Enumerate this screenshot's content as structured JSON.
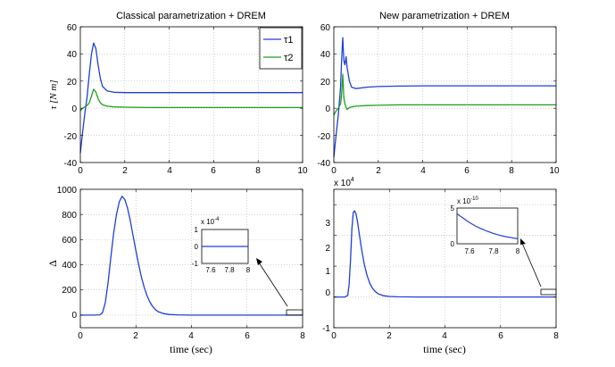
{
  "colors": {
    "tau1": "#1f3fd8",
    "tau2": "#1ea01e",
    "grid": "#b4b4b4",
    "axis": "#000000",
    "background": "#ffffff"
  },
  "chart_data": [
    {
      "id": "tl",
      "type": "line",
      "title": "Classical parametrization + DREM",
      "ylabel": "τ [N m]",
      "xlabel": "",
      "xlim": [
        0,
        10
      ],
      "ylim": [
        -40,
        60
      ],
      "xticks": [
        0,
        2,
        4,
        6,
        8,
        10
      ],
      "yticks": [
        -40,
        -20,
        0,
        20,
        40,
        60
      ],
      "grid": true,
      "legend": {
        "placement": "top-right",
        "entries": [
          "τ1",
          "τ2"
        ]
      },
      "series": [
        {
          "name": "τ1",
          "color": "#1f3fd8",
          "x": [
            0,
            0.1,
            0.2,
            0.3,
            0.4,
            0.5,
            0.6,
            0.7,
            0.8,
            0.9,
            1.0,
            1.2,
            1.5,
            2,
            3,
            4,
            6,
            8,
            10
          ],
          "y": [
            -33,
            -18,
            -4,
            8,
            25,
            40,
            48,
            44,
            32,
            22,
            16,
            12.8,
            11.8,
            11.5,
            11.5,
            11.5,
            11.5,
            11.5,
            11.5
          ]
        },
        {
          "name": "τ2",
          "color": "#1ea01e",
          "x": [
            0,
            0.1,
            0.2,
            0.3,
            0.4,
            0.5,
            0.6,
            0.7,
            0.8,
            0.9,
            1.0,
            1.2,
            1.5,
            2,
            3,
            4,
            6,
            8,
            10
          ],
          "y": [
            -2,
            0,
            1,
            2,
            4,
            9,
            14,
            12,
            7,
            4,
            2.5,
            1.5,
            1,
            0.8,
            0.5,
            0.5,
            0.5,
            0.5,
            0.5
          ]
        }
      ]
    },
    {
      "id": "tr",
      "type": "line",
      "title": "New parametrization + DREM",
      "ylabel": "",
      "xlabel": "",
      "xlim": [
        0,
        10
      ],
      "ylim": [
        -40,
        60
      ],
      "xticks": [
        0,
        2,
        4,
        6,
        8,
        10
      ],
      "yticks": [
        -40,
        -20,
        0,
        20,
        40,
        60
      ],
      "grid": true,
      "series": [
        {
          "name": "τ1",
          "color": "#1f3fd8",
          "x": [
            0,
            0.1,
            0.2,
            0.3,
            0.35,
            0.4,
            0.45,
            0.5,
            0.55,
            0.6,
            0.7,
            0.8,
            1.0,
            1.5,
            2,
            3,
            4,
            6,
            8,
            10
          ],
          "y": [
            -36,
            -20,
            -5,
            15,
            35,
            52,
            35,
            32,
            38,
            30,
            20,
            15.5,
            14.5,
            15.5,
            16,
            16.3,
            16.5,
            16.5,
            16.5,
            16.5
          ]
        },
        {
          "name": "τ2",
          "color": "#1ea01e",
          "x": [
            0,
            0.1,
            0.2,
            0.3,
            0.35,
            0.4,
            0.45,
            0.5,
            0.6,
            0.7,
            0.8,
            1.0,
            1.5,
            2,
            3,
            4,
            6,
            8,
            10
          ],
          "y": [
            -5,
            -2,
            0,
            3,
            10,
            25,
            8,
            3,
            -1,
            0.5,
            1,
            1.5,
            2,
            2.2,
            2.5,
            2.5,
            2.5,
            2.5,
            2.5
          ]
        }
      ]
    },
    {
      "id": "bl",
      "type": "line",
      "title": "",
      "ylabel": "Δ",
      "xlabel": "time (sec)",
      "xlim": [
        0,
        8
      ],
      "ylim": [
        -100,
        1000
      ],
      "xticks": [
        0,
        2,
        4,
        6,
        8
      ],
      "yticks": [
        0,
        200,
        400,
        600,
        800,
        1000
      ],
      "grid": true,
      "series": [
        {
          "name": "Δ",
          "color": "#1f3fd8",
          "x": [
            0,
            0.5,
            0.7,
            0.8,
            0.9,
            1.0,
            1.1,
            1.2,
            1.3,
            1.4,
            1.5,
            1.6,
            1.7,
            1.8,
            1.9,
            2.0,
            2.1,
            2.2,
            2.3,
            2.4,
            2.5,
            2.6,
            2.7,
            2.8,
            3.0,
            3.2,
            3.5,
            4,
            5,
            6,
            7,
            8
          ],
          "y": [
            0,
            0,
            2,
            20,
            100,
            260,
            460,
            650,
            800,
            900,
            945,
            920,
            850,
            750,
            630,
            510,
            400,
            300,
            220,
            155,
            105,
            70,
            45,
            28,
            12,
            5,
            2,
            0,
            0,
            0,
            0,
            0
          ]
        }
      ],
      "zoom_box": {
        "x": [
          7.5,
          8.0
        ]
      },
      "inset": {
        "xlim": [
          7.5,
          8.0
        ],
        "ylim": [
          -1,
          1
        ],
        "xticks": [
          "7.6",
          "7.8",
          "8"
        ],
        "yticks": [
          "1",
          "0",
          "-1"
        ],
        "scale_label": "x 10",
        "scale_exp": "-4",
        "series": {
          "x": [
            7.5,
            8.0
          ],
          "y": [
            0,
            0
          ]
        }
      }
    },
    {
      "id": "br",
      "type": "line",
      "title": "",
      "ylabel": "",
      "xlabel": "time (sec)",
      "xlim": [
        0,
        8
      ],
      "ylim": [
        -1,
        3.5
      ],
      "yscale_label": "x 10",
      "yscale_exp": "4",
      "xticks": [
        0,
        2,
        4,
        6,
        8
      ],
      "yticks": [
        -1,
        0,
        1,
        2,
        3
      ],
      "grid": true,
      "series": [
        {
          "name": "Δ",
          "color": "#1f3fd8",
          "x": [
            0,
            0.4,
            0.5,
            0.55,
            0.6,
            0.65,
            0.7,
            0.75,
            0.8,
            0.85,
            0.9,
            1.0,
            1.1,
            1.2,
            1.3,
            1.4,
            1.5,
            1.6,
            1.8,
            2.0,
            2.3,
            3,
            4,
            6,
            8
          ],
          "y": [
            0,
            0,
            0.05,
            0.4,
            1.2,
            2.2,
            2.75,
            2.8,
            2.7,
            2.45,
            2.15,
            1.55,
            1.05,
            0.68,
            0.43,
            0.27,
            0.17,
            0.1,
            0.04,
            0.015,
            0.005,
            0,
            0,
            0,
            0
          ]
        }
      ],
      "zoom_box": {
        "x": [
          7.6,
          8.0
        ]
      },
      "inset": {
        "xlim": [
          7.5,
          8.0
        ],
        "ylim": [
          0,
          5
        ],
        "xticks": [
          "7.6",
          "7.8",
          "8"
        ],
        "yticks": [
          "5",
          "0"
        ],
        "scale_label": "x 10",
        "scale_exp": "-10",
        "series": {
          "x": [
            7.5,
            7.55,
            7.6,
            7.65,
            7.7,
            7.75,
            7.8,
            7.85,
            7.9,
            7.95,
            8.0
          ],
          "y": [
            4.2,
            3.6,
            3.0,
            2.5,
            2.1,
            1.75,
            1.45,
            1.2,
            1.0,
            0.85,
            0.7
          ]
        }
      }
    }
  ]
}
